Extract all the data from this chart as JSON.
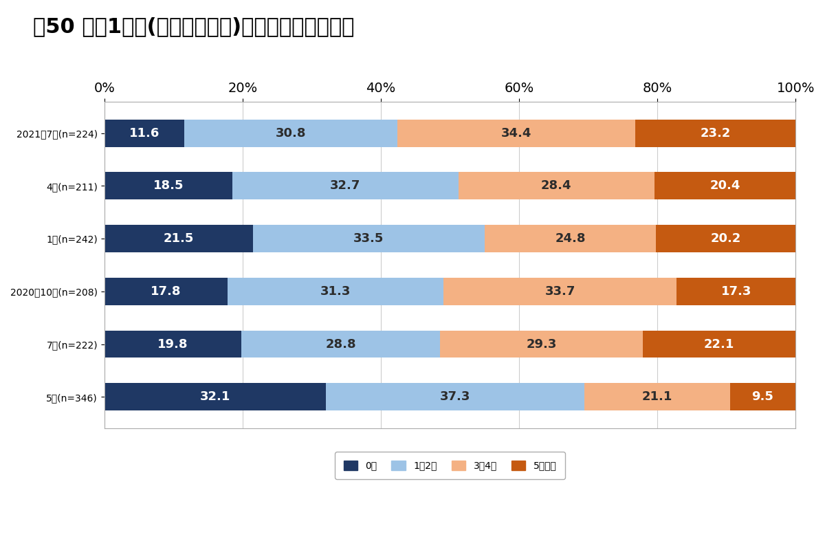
{
  "title": "図50 直近1週間(営業日ベース)の週当たり出勤日数",
  "categories": [
    "2021年7月(n=224)",
    "4月(n=211)",
    "1月(n=242)",
    "2020年10月(n=208)",
    "7月(n=222)",
    "5月(n=346)"
  ],
  "series": {
    "0日": [
      11.6,
      18.5,
      21.5,
      17.8,
      19.8,
      32.1
    ],
    "1〜2日": [
      30.8,
      32.7,
      33.5,
      31.3,
      28.8,
      37.3
    ],
    "3〜4日": [
      34.4,
      28.4,
      24.8,
      33.7,
      29.3,
      21.1
    ],
    "5日以上": [
      23.2,
      20.4,
      20.2,
      17.3,
      22.1,
      9.5
    ]
  },
  "colors": {
    "0日": "#1f3864",
    "1〜2日": "#9dc3e6",
    "3〜4日": "#f4b183",
    "5日以上": "#c55a11"
  },
  "legend_labels": [
    "0日",
    "1〜2日",
    "3〜4日",
    "5日以上"
  ],
  "xlim": [
    0,
    100
  ],
  "xticks": [
    0,
    20,
    40,
    60,
    80,
    100
  ],
  "xticklabels": [
    "0%",
    "20%",
    "40%",
    "60%",
    "80%",
    "100%"
  ],
  "background_color": "#ffffff",
  "title_fontsize": 22,
  "tick_fontsize": 14,
  "bar_label_fontsize": 13,
  "legend_fontsize": 14,
  "bar_height": 0.52
}
